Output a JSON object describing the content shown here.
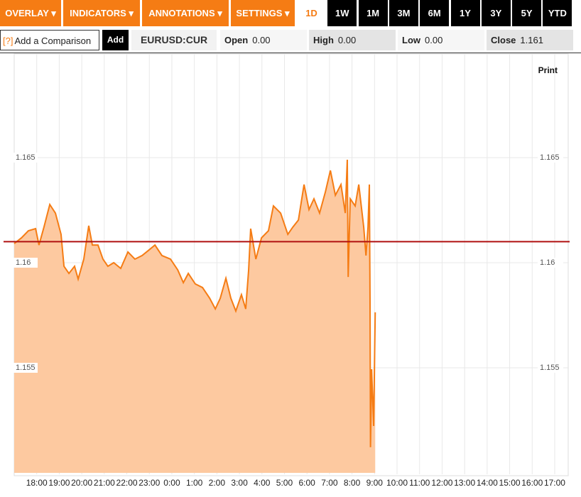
{
  "toolbar": {
    "menus": [
      "OVERLAY ▾",
      "INDICATORS ▾",
      "ANNOTATIONS ▾",
      "SETTINGS ▾"
    ],
    "ranges": [
      "1D",
      "1W",
      "1M",
      "3M",
      "6M",
      "1Y",
      "3Y",
      "5Y",
      "YTD"
    ],
    "comparison_placeholder": "Add a Comparison",
    "help": "[?]",
    "add": "Add",
    "symbol": "EURUSD:CUR",
    "stats": [
      {
        "label": "Open",
        "value": "0.00"
      },
      {
        "label": "High",
        "value": "0.00"
      },
      {
        "label": "Low",
        "value": "0.00"
      },
      {
        "label": "Close",
        "value": 1.161
      }
    ],
    "print": "Print"
  },
  "chart_data": {
    "type": "area",
    "series": [
      {
        "name": "EURUSD:CUR",
        "color": "#f57c14",
        "fill": "#fdc9a0",
        "x": [
          0,
          0.32,
          0.63,
          0.95,
          1.1,
          1.32,
          1.58,
          1.83,
          2.08,
          2.21,
          2.43,
          2.68,
          2.84,
          3.09,
          3.31,
          3.47,
          3.72,
          3.94,
          4.16,
          4.42,
          4.73,
          5.05,
          5.36,
          5.68,
          5.99,
          6.25,
          6.56,
          6.94,
          7.26,
          7.51,
          7.73,
          8.04,
          8.36,
          8.68,
          8.93,
          9.15,
          9.4,
          9.62,
          9.84,
          10.09,
          10.28,
          10.41,
          10.5,
          10.73,
          10.98,
          11.29,
          11.51,
          11.83,
          12.15,
          12.37,
          12.62,
          12.87,
          13.09,
          13.31,
          13.56,
          13.82,
          14.04,
          14.26,
          14.51,
          14.7,
          14.79,
          14.83,
          14.92,
          15.14,
          15.3,
          15.52,
          15.62,
          15.71,
          15.77,
          15.8,
          15.82,
          15.87,
          15.96,
          16.03
        ],
        "values": [
          1.16091,
          1.16118,
          1.16152,
          1.16162,
          1.16084,
          1.16169,
          1.16277,
          1.16236,
          1.16135,
          1.15983,
          1.15949,
          1.15983,
          1.15922,
          1.16017,
          1.16176,
          1.16084,
          1.16084,
          1.16017,
          1.15983,
          1.16,
          1.15973,
          1.16051,
          1.16017,
          1.16034,
          1.16061,
          1.16084,
          1.16034,
          1.16017,
          1.15966,
          1.15905,
          1.15949,
          1.15899,
          1.15882,
          1.15831,
          1.1578,
          1.15831,
          1.15926,
          1.15831,
          1.1577,
          1.15848,
          1.1578,
          1.15966,
          1.16162,
          1.16017,
          1.16118,
          1.16152,
          1.1627,
          1.16236,
          1.16135,
          1.16169,
          1.16203,
          1.16372,
          1.16253,
          1.16304,
          1.16236,
          1.16338,
          1.16439,
          1.16321,
          1.16372,
          1.16236,
          1.1649,
          1.15932,
          1.16304,
          1.1627,
          1.16372,
          1.16169,
          1.16034,
          1.16169,
          1.16372,
          1.15831,
          1.15122,
          1.15493,
          1.15223,
          1.15764
        ]
      }
    ],
    "xlim": [
      0,
      24.6
    ],
    "ylim": [
      1.15,
      1.17
    ],
    "yticks": [
      1.155,
      1.16,
      1.165
    ],
    "xticks": [
      {
        "value": 1,
        "label": "18:00"
      },
      {
        "value": 2,
        "label": "19:00"
      },
      {
        "value": 3,
        "label": "20:00"
      },
      {
        "value": 4,
        "label": "21:00"
      },
      {
        "value": 5,
        "label": "22:00"
      },
      {
        "value": 6,
        "label": "23:00"
      },
      {
        "value": 7,
        "label": "0:00"
      },
      {
        "value": 8,
        "label": "1:00"
      },
      {
        "value": 9,
        "label": "2:00"
      },
      {
        "value": 10,
        "label": "3:00"
      },
      {
        "value": 11,
        "label": "4:00"
      },
      {
        "value": 12,
        "label": "5:00"
      },
      {
        "value": 13,
        "label": "6:00"
      },
      {
        "value": 14,
        "label": "7:00"
      },
      {
        "value": 15,
        "label": "8:00"
      },
      {
        "value": 16,
        "label": "9:00"
      },
      {
        "value": 17,
        "label": "10:00"
      },
      {
        "value": 18,
        "label": "11:00"
      },
      {
        "value": 19,
        "label": "12:00"
      },
      {
        "value": 20,
        "label": "13:00"
      },
      {
        "value": 21,
        "label": "14:00"
      },
      {
        "value": 22,
        "label": "15:00"
      },
      {
        "value": 23,
        "label": "16:00"
      },
      {
        "value": 24,
        "label": "17:00"
      }
    ],
    "grid": true,
    "reference_color": "#b01010"
  }
}
